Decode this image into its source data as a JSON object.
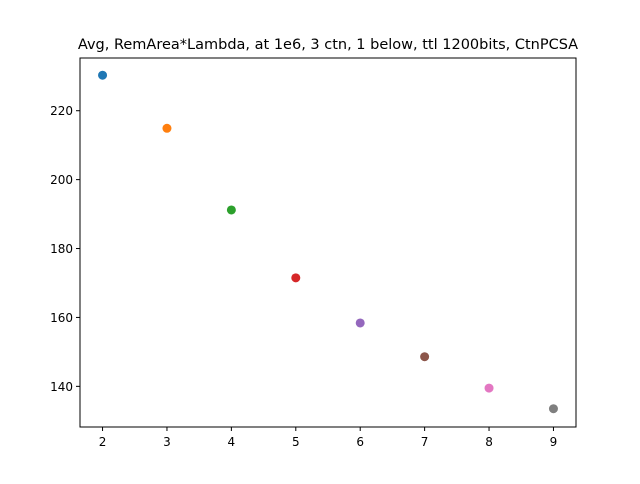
{
  "chart_data": {
    "type": "scatter",
    "title": "Avg, RemArea*Lambda, at 1e6, 3 ctn, 1 below, ttl 1200bits, CtnPCSA",
    "xlabel": "",
    "ylabel": "",
    "xlim": [
      1.65,
      9.35
    ],
    "ylim": [
      128.2,
      235.3
    ],
    "x_ticks": [
      2,
      3,
      4,
      5,
      6,
      7,
      8,
      9
    ],
    "y_ticks": [
      140,
      160,
      180,
      200,
      220
    ],
    "grid": false,
    "points": [
      {
        "x": 2,
        "y": 230.3,
        "color": "#1f77b4"
      },
      {
        "x": 3,
        "y": 214.9,
        "color": "#ff7f0e"
      },
      {
        "x": 4,
        "y": 191.2,
        "color": "#2ca02c"
      },
      {
        "x": 5,
        "y": 171.5,
        "color": "#d62728"
      },
      {
        "x": 6,
        "y": 158.4,
        "color": "#9467bd"
      },
      {
        "x": 7,
        "y": 148.6,
        "color": "#8c564b"
      },
      {
        "x": 8,
        "y": 139.5,
        "color": "#e377c2"
      },
      {
        "x": 9,
        "y": 133.5,
        "color": "#7f7f7f"
      }
    ]
  }
}
